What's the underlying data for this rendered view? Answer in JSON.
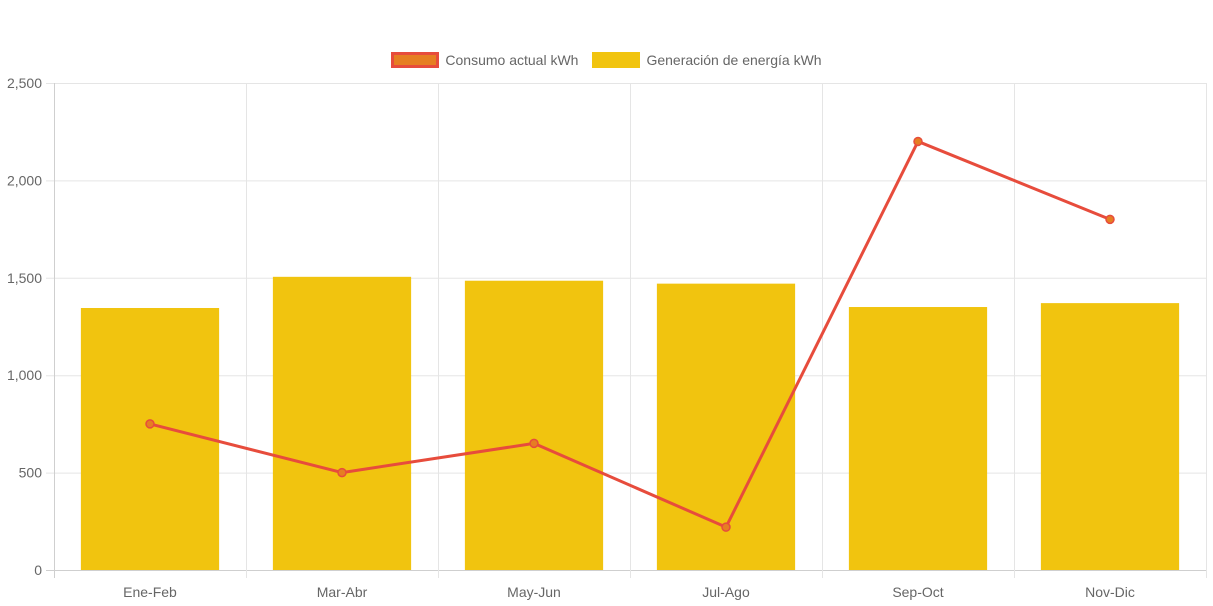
{
  "chart_data": {
    "type": "bar",
    "categories": [
      "Ene-Feb",
      "Mar-Abr",
      "May-Jun",
      "Jul-Ago",
      "Sep-Oct",
      "Nov-Dic"
    ],
    "series": [
      {
        "name": "Consumo actual kWh",
        "type": "line",
        "values": [
          750,
          500,
          650,
          220,
          2200,
          1800
        ],
        "color": "#e74c3c",
        "point_color": "#e67e22"
      },
      {
        "name": "Generación de energía kWh",
        "type": "bar",
        "values": [
          1345,
          1505,
          1485,
          1470,
          1350,
          1370
        ],
        "color": "#f1c40f"
      }
    ],
    "ylim": [
      0,
      2500
    ],
    "yticks": [
      0,
      500,
      1000,
      1500,
      2000,
      2500
    ],
    "ytick_labels": [
      "0",
      "500",
      "1,000",
      "1,500",
      "2,000",
      "2,500"
    ],
    "xlabel": "",
    "ylabel": "",
    "grid": true,
    "legend_position": "top-center"
  }
}
